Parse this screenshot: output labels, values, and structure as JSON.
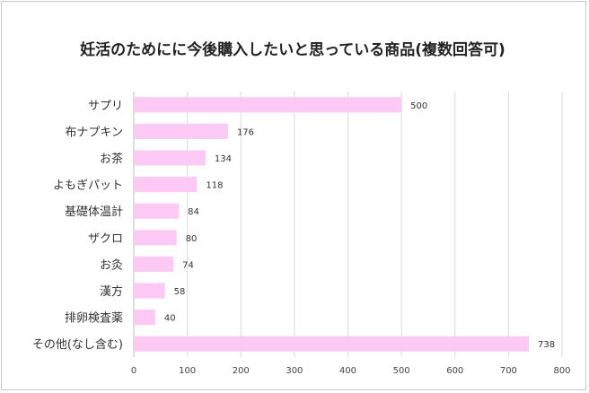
{
  "chart_data": {
    "type": "bar",
    "orientation": "horizontal",
    "title": "妊活のためにに今後購入したいと思っている商品(複数回答可)",
    "categories": [
      "サプリ",
      "布ナプキン",
      "お茶",
      "よもぎパット",
      "基礎体温計",
      "ザクロ",
      "お灸",
      "漢方",
      "排卵検査薬",
      "その他(なし含む)"
    ],
    "values": [
      500,
      176,
      134,
      118,
      84,
      80,
      74,
      58,
      40,
      738
    ],
    "xlim": [
      0,
      800
    ],
    "xticks": [
      "0",
      "100",
      "200",
      "300",
      "400",
      "500",
      "600",
      "700",
      "800"
    ],
    "grid": true,
    "bar_color": "#fcc8f4"
  }
}
